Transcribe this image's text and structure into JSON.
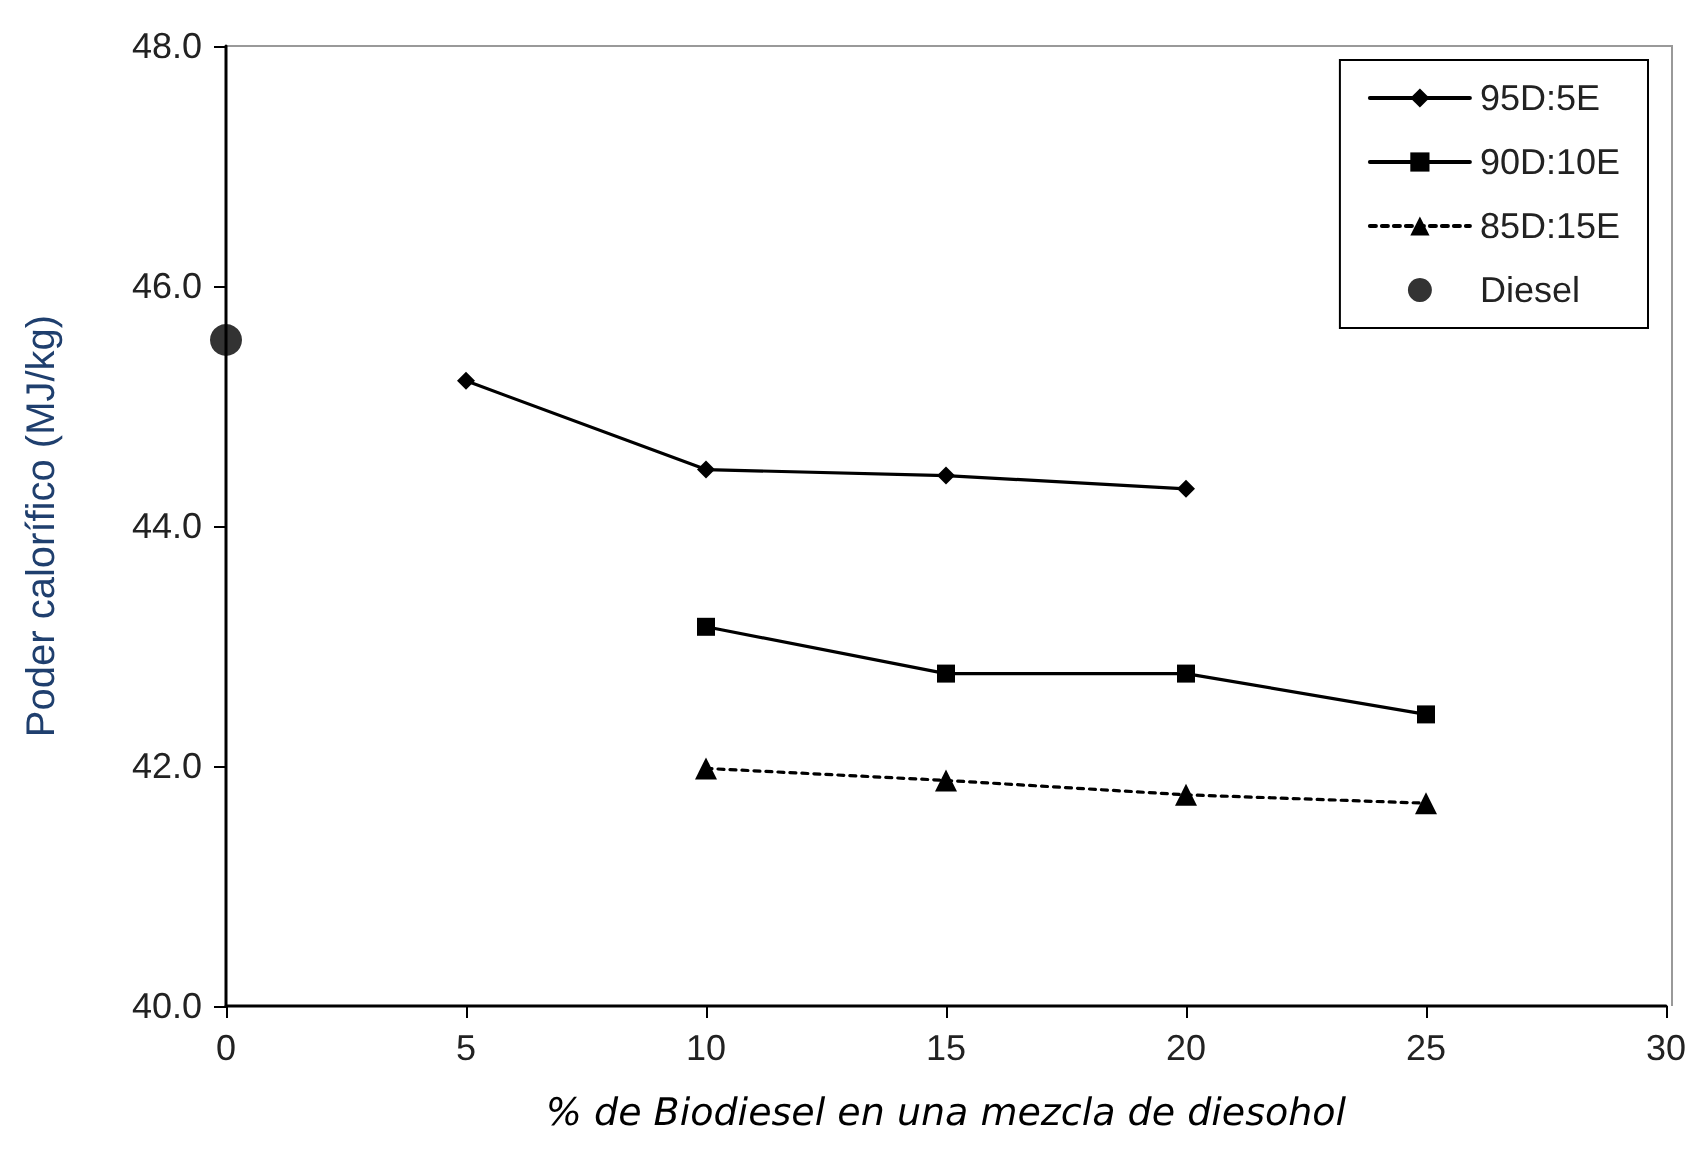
{
  "chart_data": {
    "type": "line",
    "xlabel": "% de Biodiesel en una mezcla de diesohol",
    "ylabel": "Poder calorífico (MJ/kg)",
    "xlim": [
      0,
      30
    ],
    "xticks": [
      0,
      5,
      10,
      15,
      20,
      25,
      30
    ],
    "ylim": [
      40,
      48
    ],
    "yticks": [
      {
        "value": 40,
        "label": "40.0"
      },
      {
        "value": 42,
        "label": "42.0"
      },
      {
        "value": 44,
        "label": "44.0"
      },
      {
        "value": 46,
        "label": "46.0"
      },
      {
        "value": 48,
        "label": "48.0"
      }
    ],
    "grid": false,
    "legend": "top right",
    "series": [
      {
        "name": "95D:5E",
        "color": "#000000",
        "marker": "diamond",
        "line_style": "solid",
        "x": [
          5,
          10,
          15,
          20
        ],
        "values": [
          45.21,
          44.47,
          44.42,
          44.31
        ]
      },
      {
        "name": "90D:10E",
        "color": "#000000",
        "marker": "square",
        "line_style": "solid",
        "x": [
          10,
          15,
          20,
          25
        ],
        "values": [
          43.16,
          42.77,
          42.77,
          42.43
        ]
      },
      {
        "name": "85D:15E",
        "color": "#000000",
        "marker": "triangle",
        "line_style": "dotted",
        "x": [
          10,
          15,
          20,
          25
        ],
        "values": [
          41.98,
          41.88,
          41.76,
          41.69
        ]
      },
      {
        "name": "Diesel",
        "type": "scatter",
        "color": "#000000",
        "marker": "circle",
        "x": [
          0
        ],
        "values": [
          45.55
        ]
      }
    ]
  }
}
